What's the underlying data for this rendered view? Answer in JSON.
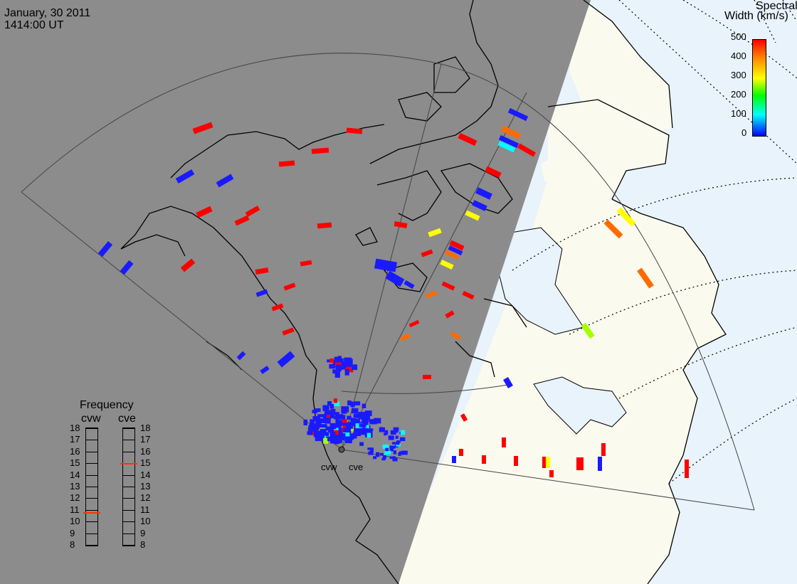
{
  "header": {
    "date": "January, 30 2011",
    "time": "1414:00 UT"
  },
  "colorbar": {
    "title_line1": "Spectral",
    "title_line2": "Width (km/s)",
    "ticks": [
      "500",
      "400",
      "300",
      "200",
      "100",
      "0"
    ],
    "colors": [
      "#ff0000",
      "#ff8000",
      "#ffff00",
      "#00ff00",
      "#00ffff",
      "#0000ff"
    ]
  },
  "frequency": {
    "title": "Frequency",
    "radar_left": "cvw",
    "radar_right": "cve",
    "ticks": [
      "18",
      "17",
      "16",
      "15",
      "14",
      "13",
      "12",
      "11",
      "10",
      "9",
      "8"
    ],
    "cvw_value": 10.8,
    "cve_value": 15.0,
    "marker_color": "#ff3300"
  },
  "radar_labels": {
    "west": "cvw",
    "east": "cve"
  },
  "colors": {
    "night": "#8c8c8c",
    "land_day": "#fbfaee",
    "ocean_day": "#e8f3fb",
    "coast": "#000000",
    "fov": "#404040",
    "grid": "#000000"
  }
}
